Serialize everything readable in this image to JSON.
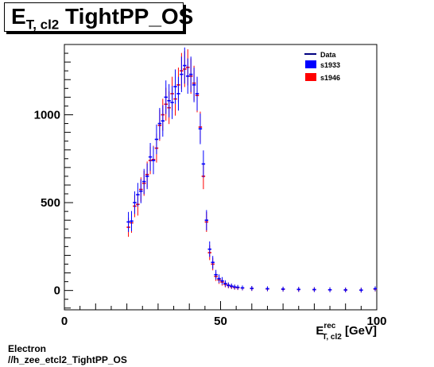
{
  "title": {
    "main": "E",
    "sub": "T, cl2",
    "rest": " TightPP_OS"
  },
  "footer": {
    "line1": "Electron",
    "line2": "//h_zee_etcl2_TightPP_OS"
  },
  "colors": {
    "data": "#000080",
    "s1933": "#0000ff",
    "s1946": "#ff0000"
  },
  "chart_data": {
    "type": "scatter",
    "xlabel": {
      "main": "E",
      "sup": "rec",
      "sub": "T, cl2",
      "unit": " [GeV]"
    },
    "ylabel": "",
    "xlim": [
      0,
      100
    ],
    "ylim": [
      -110,
      1400
    ],
    "x_ticks": [
      0,
      50,
      100
    ],
    "y_ticks": [
      0,
      500,
      1000
    ],
    "grid": false,
    "legend_position": "top-right",
    "legend": [
      {
        "name": "Data",
        "style": "line"
      },
      {
        "name": "s1933",
        "style": "box"
      },
      {
        "name": "s1946",
        "style": "box"
      }
    ],
    "series": [
      {
        "name": "s1933",
        "x": [
          20.5,
          21.5,
          22.5,
          23.5,
          24.5,
          25.5,
          26.5,
          27.5,
          28.5,
          29.5,
          30.5,
          31.5,
          32.5,
          33.5,
          34.5,
          35.5,
          36.5,
          37.5,
          38.5,
          39.5,
          40.5,
          41.5,
          42.5,
          43.5,
          44.5,
          45.5,
          46.5,
          47.5,
          48.5,
          49.5,
          50.5,
          51.5,
          52.5,
          53.5,
          54.5,
          55.5,
          57,
          60,
          65,
          70,
          75,
          80,
          85,
          90,
          95,
          99.5
        ],
        "y": [
          390,
          395,
          500,
          545,
          565,
          620,
          650,
          760,
          740,
          860,
          950,
          965,
          1100,
          1080,
          1070,
          1160,
          1120,
          1230,
          1280,
          1220,
          1230,
          1170,
          1120,
          920,
          720,
          400,
          235,
          160,
          90,
          68,
          55,
          40,
          30,
          25,
          20,
          18,
          15,
          12,
          10,
          8,
          6,
          5,
          4,
          3,
          2,
          10
        ]
      },
      {
        "name": "s1946",
        "x": [
          20.5,
          21.5,
          22.5,
          23.5,
          24.5,
          25.5,
          26.5,
          27.5,
          28.5,
          29.5,
          30.5,
          31.5,
          32.5,
          33.5,
          34.5,
          35.5,
          36.5,
          37.5,
          38.5,
          39.5,
          40.5,
          41.5,
          42.5,
          43.5,
          44.5,
          45.5,
          46.5,
          47.5,
          48.5,
          49.5,
          50.5,
          51.5,
          52.5,
          53.5,
          54.5,
          55.5,
          57,
          60,
          65,
          70,
          75,
          80,
          85,
          90,
          95,
          99.5
        ],
        "y": [
          360,
          385,
          480,
          490,
          575,
          610,
          660,
          740,
          745,
          810,
          940,
          1000,
          1060,
          1040,
          1120,
          1090,
          1170,
          1250,
          1260,
          1270,
          1220,
          1180,
          1110,
          930,
          650,
          390,
          215,
          150,
          80,
          60,
          48,
          35,
          28,
          22,
          18,
          16,
          14,
          11,
          9,
          7,
          6,
          5,
          4,
          3,
          2,
          8
        ]
      }
    ]
  }
}
